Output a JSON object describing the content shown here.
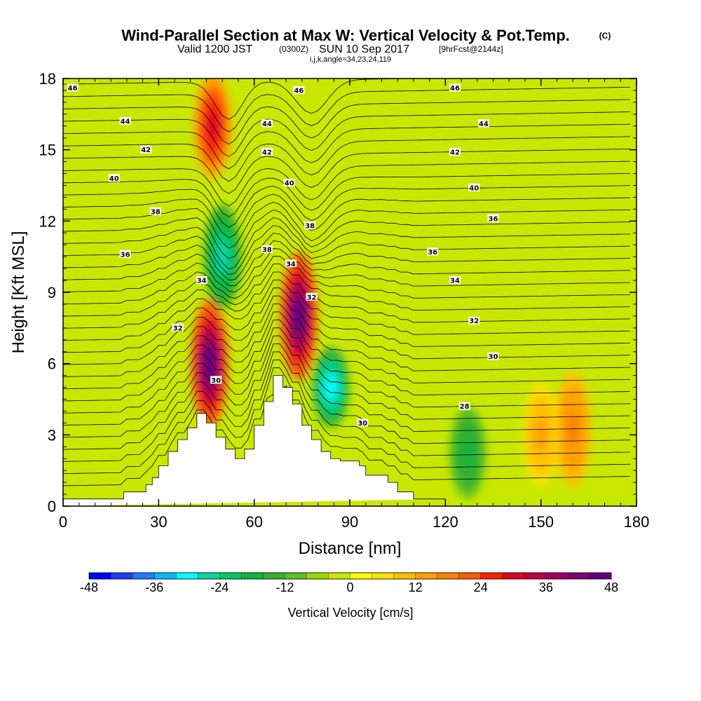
{
  "figure": {
    "title": "Wind-Parallel Section at Max W: Vertical Velocity & Pot.Temp.",
    "copyright": "(C)",
    "subtitle_prefix": "Valid 1200 JST",
    "subtitle_utc": "(0300Z)",
    "subtitle_date": "SUN 10 Sep 2017",
    "subtitle_fcst": "[9hrFcst@2144z]",
    "subtitle_small": "i,j,k,angle=34,23,24,119"
  },
  "chart_data": {
    "type": "heatmap",
    "xlabel": "Distance [nm]",
    "ylabel": "Height [Kft MSL]",
    "xlim": [
      0,
      180
    ],
    "ylim": [
      0,
      18
    ],
    "xticks": [
      0,
      30,
      60,
      90,
      120,
      150,
      180
    ],
    "yticks": [
      0,
      3,
      6,
      9,
      12,
      15,
      18
    ],
    "colorbar": {
      "title": "Vertical Velocity [cm/s]",
      "ticks": [
        -48,
        -36,
        -24,
        -12,
        0,
        12,
        24,
        36,
        48
      ],
      "range": [
        -48,
        48
      ],
      "colors": [
        "#0000ff",
        "#1f3dff",
        "#1d7dff",
        "#00b9ff",
        "#00ffff",
        "#00d8a8",
        "#00c864",
        "#10b43c",
        "#30b030",
        "#60c020",
        "#98d800",
        "#c8e800",
        "#ffff00",
        "#ffe000",
        "#ffc000",
        "#ffa000",
        "#ff8000",
        "#ff5a00",
        "#ff2000",
        "#e00020",
        "#c00040",
        "#a00060",
        "#800070",
        "#600080"
      ]
    },
    "terrain_profile": {
      "description_units": "distance nm, height kft",
      "x": [
        0,
        19,
        19,
        26,
        26,
        28,
        28,
        30,
        30,
        33,
        33,
        36,
        36,
        39,
        39,
        42,
        42,
        45,
        45,
        48,
        48,
        51,
        51,
        54,
        54,
        57,
        57,
        60,
        60,
        63,
        63,
        66,
        66,
        69,
        69,
        72,
        72,
        75,
        75,
        78,
        78,
        81,
        81,
        84,
        84,
        87,
        87,
        93,
        93,
        95,
        95,
        102,
        102,
        105,
        105,
        110,
        110,
        114,
        114,
        120,
        120,
        180
      ],
      "y": [
        0.3,
        0.3,
        0.6,
        0.6,
        0.9,
        0.9,
        1.2,
        1.2,
        1.7,
        1.7,
        2.3,
        2.3,
        2.8,
        2.8,
        3.3,
        3.3,
        3.9,
        3.9,
        3.5,
        3.5,
        2.9,
        2.9,
        2.4,
        2.4,
        2.0,
        2.0,
        2.4,
        2.4,
        3.4,
        3.4,
        4.4,
        4.4,
        5.5,
        5.5,
        5.0,
        5.0,
        4.3,
        4.3,
        3.4,
        3.4,
        2.8,
        2.8,
        2.3,
        2.3,
        2.0,
        2.0,
        1.9,
        1.9,
        1.7,
        1.7,
        1.3,
        1.3,
        1.0,
        1.0,
        0.6,
        0.6,
        0.3,
        0.3,
        0.3,
        0.3,
        0.3
      ]
    },
    "vertical_velocity_features": [
      {
        "x_center": 46,
        "y_bottom": 3.5,
        "y_top": 8.5,
        "value": 44
      },
      {
        "x_center": 47,
        "y_bottom": 14,
        "y_top": 18,
        "value": 30
      },
      {
        "x_center": 74,
        "y_bottom": 5.5,
        "y_top": 10.5,
        "value": 46
      },
      {
        "x_center": 50,
        "y_bottom": 8.5,
        "y_top": 12.5,
        "value": -28
      },
      {
        "x_center": 84,
        "y_bottom": 3.5,
        "y_top": 6.5,
        "value": -30
      },
      {
        "x_center": 127,
        "y_bottom": 0.5,
        "y_top": 4.0,
        "value": -18
      },
      {
        "x_center": 160,
        "y_bottom": 1.0,
        "y_top": 5.5,
        "value": 18
      },
      {
        "x_center": 150,
        "y_bottom": 1.0,
        "y_top": 5.0,
        "value": 12
      }
    ],
    "potential_temperature_contours": {
      "units": "C",
      "levels": [
        28,
        30,
        32,
        34,
        36,
        38,
        40,
        42,
        44,
        46
      ],
      "labels": [
        {
          "text": "46",
          "x": 3,
          "y": 17.6
        },
        {
          "text": "44",
          "x": 19.5,
          "y": 16.2
        },
        {
          "text": "42",
          "x": 26,
          "y": 15.0
        },
        {
          "text": "40",
          "x": 16,
          "y": 13.8
        },
        {
          "text": "38",
          "x": 29,
          "y": 12.4
        },
        {
          "text": "36",
          "x": 19.5,
          "y": 10.6
        },
        {
          "text": "34",
          "x": 43.5,
          "y": 9.5
        },
        {
          "text": "32",
          "x": 36,
          "y": 7.5
        },
        {
          "text": "30",
          "x": 48,
          "y": 5.3
        },
        {
          "text": "44",
          "x": 64,
          "y": 16.1
        },
        {
          "text": "46",
          "x": 74,
          "y": 17.5
        },
        {
          "text": "42",
          "x": 64,
          "y": 14.9
        },
        {
          "text": "40",
          "x": 71,
          "y": 13.6
        },
        {
          "text": "38",
          "x": 77.5,
          "y": 11.8
        },
        {
          "text": "38",
          "x": 64,
          "y": 10.8
        },
        {
          "text": "34",
          "x": 71.5,
          "y": 10.2
        },
        {
          "text": "32",
          "x": 78,
          "y": 8.8
        },
        {
          "text": "30",
          "x": 94,
          "y": 3.5
        },
        {
          "text": "46",
          "x": 123,
          "y": 17.6
        },
        {
          "text": "44",
          "x": 132,
          "y": 16.1
        },
        {
          "text": "42",
          "x": 123,
          "y": 14.9
        },
        {
          "text": "40",
          "x": 129,
          "y": 13.4
        },
        {
          "text": "36",
          "x": 135,
          "y": 12.1
        },
        {
          "text": "36",
          "x": 116,
          "y": 10.7
        },
        {
          "text": "34",
          "x": 123,
          "y": 9.5
        },
        {
          "text": "32",
          "x": 129,
          "y": 7.8
        },
        {
          "text": "30",
          "x": 135,
          "y": 6.3
        },
        {
          "text": "28",
          "x": 126,
          "y": 4.2
        }
      ]
    }
  }
}
